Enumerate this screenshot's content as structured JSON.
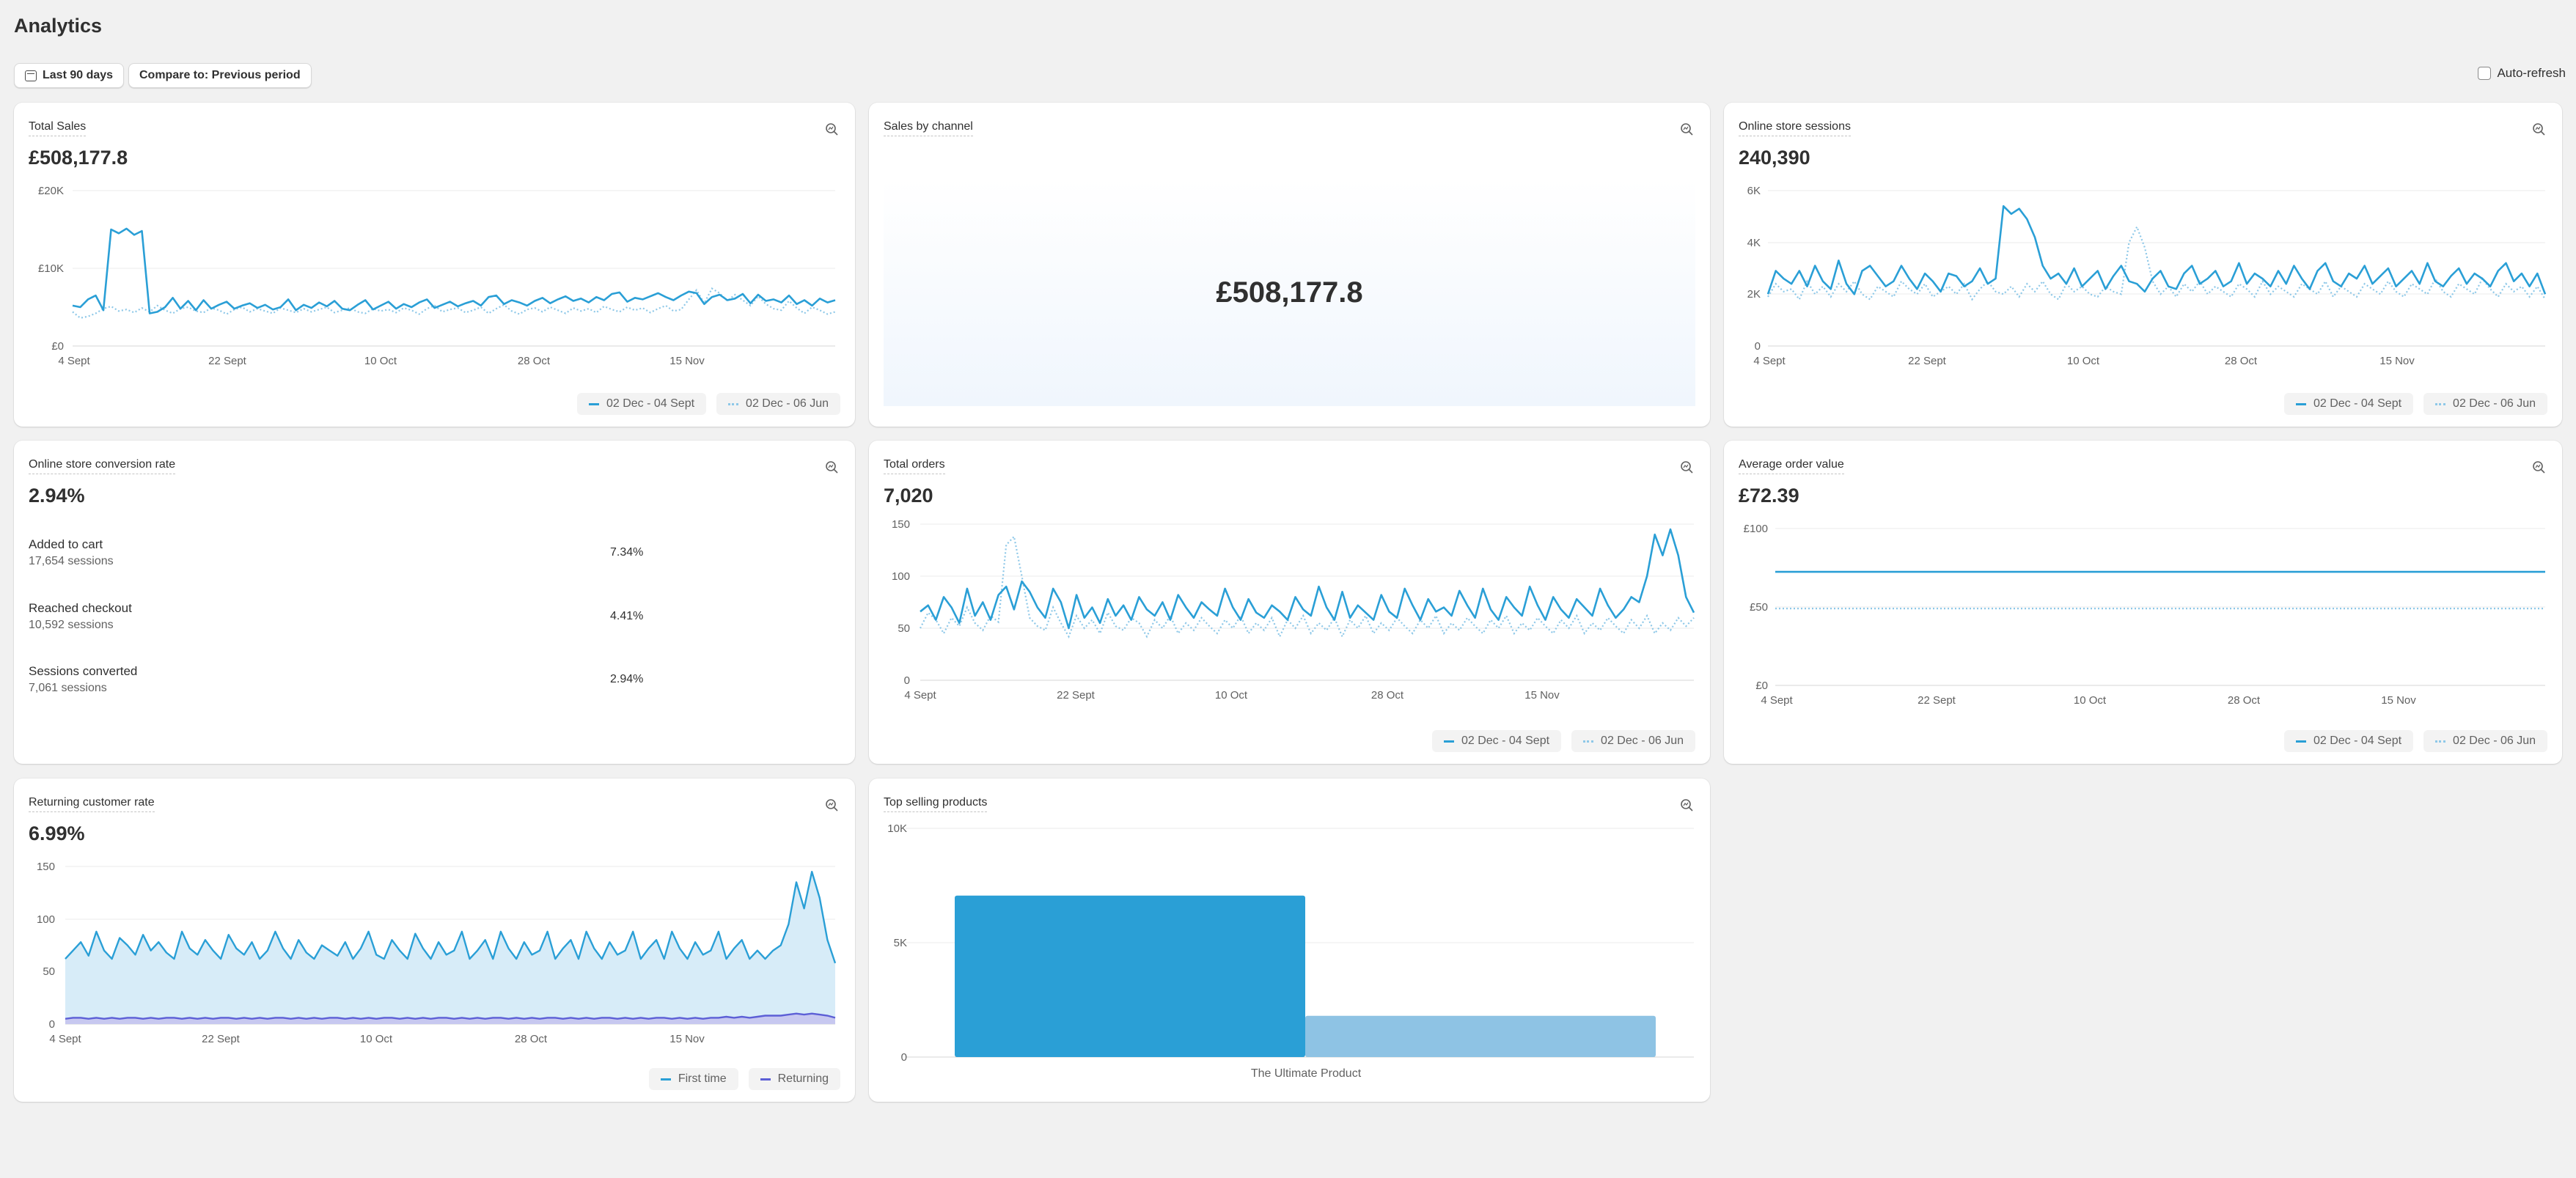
{
  "header": {
    "title": "Analytics",
    "date_range_label": "Last 90 days",
    "compare_label": "Compare to: Previous period",
    "auto_refresh_label": "Auto-refresh"
  },
  "legend": {
    "current": "02 Dec - 04 Sept",
    "previous": "02 Dec - 06 Jun",
    "first_time": "First time",
    "returning": "Returning"
  },
  "colors": {
    "primary": "#2a9fd6",
    "comparison": "#8ec8e8",
    "returning": "#5c5fd6",
    "bar_light": "#8ec3e4"
  },
  "cards": {
    "total_sales": {
      "title": "Total Sales",
      "value": "£508,177.8",
      "y_ticks": [
        "£20K",
        "£10K",
        "£0"
      ],
      "x_ticks": [
        "4 Sept",
        "22 Sept",
        "10 Oct",
        "28 Oct",
        "15 Nov"
      ]
    },
    "sales_by_channel": {
      "title": "Sales by channel",
      "value": "£508,177.8"
    },
    "sessions": {
      "title": "Online store sessions",
      "value": "240,390",
      "y_ticks": [
        "6K",
        "4K",
        "2K",
        "0"
      ],
      "x_ticks": [
        "4 Sept",
        "22 Sept",
        "10 Oct",
        "28 Oct",
        "15 Nov"
      ]
    },
    "conversion": {
      "title": "Online store conversion rate",
      "value": "2.94%",
      "rows": [
        {
          "label": "Added to cart",
          "sub": "17,654 sessions",
          "pct": "7.34%"
        },
        {
          "label": "Reached checkout",
          "sub": "10,592 sessions",
          "pct": "4.41%"
        },
        {
          "label": "Sessions converted",
          "sub": "7,061 sessions",
          "pct": "2.94%"
        }
      ]
    },
    "total_orders": {
      "title": "Total orders",
      "value": "7,020",
      "y_ticks": [
        "150",
        "100",
        "50",
        "0"
      ],
      "x_ticks": [
        "4 Sept",
        "22 Sept",
        "10 Oct",
        "28 Oct",
        "15 Nov"
      ]
    },
    "aov": {
      "title": "Average order value",
      "value": "£72.39",
      "y_ticks": [
        "£100",
        "£50",
        "£0"
      ],
      "x_ticks": [
        "4 Sept",
        "22 Sept",
        "10 Oct",
        "28 Oct",
        "15 Nov"
      ]
    },
    "returning": {
      "title": "Returning customer rate",
      "value": "6.99%",
      "y_ticks": [
        "150",
        "100",
        "50",
        "0"
      ],
      "x_ticks": [
        "4 Sept",
        "22 Sept",
        "10 Oct",
        "28 Oct",
        "15 Nov"
      ]
    },
    "top_products": {
      "title": "Top selling products",
      "y_ticks": [
        "10K",
        "5K",
        "0"
      ],
      "category": "The Ultimate Product"
    }
  },
  "chart_data": [
    {
      "type": "line",
      "id": "total_sales",
      "x_start": "4 Sept",
      "ylim": [
        0,
        20000
      ],
      "series": [
        {
          "name": "02 Dec - 04 Sept",
          "values": [
            5200,
            5000,
            6000,
            6500,
            4600,
            15000,
            14500,
            15100,
            14300,
            14800,
            4200,
            4400,
            5000,
            6200,
            4800,
            5800,
            4600,
            5900,
            4800,
            5300,
            5700,
            4800,
            5200,
            5500,
            4900,
            5300,
            4700,
            5000,
            6000,
            4600,
            5300,
            4900,
            5600,
            5100,
            5800,
            4800,
            4600,
            5300,
            5900,
            4700,
            5200,
            5700,
            4800,
            5400,
            5000,
            5600,
            6000,
            4900,
            5300,
            5700,
            5100,
            5500,
            5800,
            5200,
            6300,
            6500,
            5400,
            5900,
            5600,
            5200,
            5800,
            6200,
            5500,
            6000,
            6400,
            5800,
            6100,
            5600,
            6300,
            5900,
            6700,
            6900,
            5700,
            6200,
            6000,
            6400,
            6800,
            6300,
            5900,
            6500,
            7000,
            6800,
            5400,
            6300,
            6600,
            5900,
            6100,
            6700,
            5500,
            6600,
            5800,
            6000,
            5600,
            6500,
            5400,
            5900,
            5200,
            6100,
            5600,
            5900
          ]
        },
        {
          "name": "02 Dec - 06 Jun",
          "values": [
            4400,
            3600,
            3800,
            4200,
            4800,
            5100,
            4500,
            4700,
            4300,
            4900,
            4400,
            5200,
            4600,
            4200,
            4800,
            5000,
            4500,
            4300,
            4900,
            4600,
            4100,
            4700,
            5000,
            4400,
            4800,
            4500,
            4200,
            4900,
            4600,
            4300,
            4800,
            4400,
            4700,
            5000,
            4300,
            4600,
            4900,
            4400,
            4200,
            4800,
            4500,
            4700,
            4300,
            4900,
            4600,
            4100,
            4800,
            5200,
            4400,
            4700,
            4900,
            4300,
            4600,
            5000,
            4200,
            4800,
            5300,
            4500,
            4100,
            4700,
            4900,
            4400,
            5000,
            4600,
            4200,
            4900,
            4500,
            4800,
            4300,
            5100,
            4700,
            4400,
            5000,
            4600,
            4900,
            4300,
            4800,
            5200,
            4500,
            4700,
            6000,
            7200,
            5500,
            7400,
            6800,
            5800,
            6600,
            5900,
            5200,
            6400,
            5400,
            4800,
            4600,
            5800,
            4900,
            4200,
            5000,
            4600,
            4100,
            4400
          ]
        }
      ]
    },
    {
      "type": "line",
      "id": "sessions",
      "x_start": "4 Sept",
      "ylim": [
        0,
        6000
      ],
      "series": [
        {
          "name": "02 Dec - 04 Sept",
          "values": [
            2000,
            2900,
            2600,
            2400,
            2900,
            2300,
            3100,
            2500,
            2200,
            3300,
            2400,
            2000,
            2900,
            3100,
            2700,
            2300,
            2500,
            3100,
            2600,
            2200,
            2800,
            2500,
            2100,
            2800,
            2700,
            2300,
            2500,
            3000,
            2400,
            2600,
            5400,
            5100,
            5300,
            4900,
            4200,
            3100,
            2600,
            2800,
            2400,
            3000,
            2300,
            2600,
            2900,
            2200,
            2700,
            3100,
            2500,
            2400,
            2100,
            2600,
            2900,
            2300,
            2200,
            2800,
            3100,
            2400,
            2600,
            2900,
            2300,
            2500,
            3200,
            2400,
            2800,
            2600,
            2300,
            2900,
            2400,
            3100,
            2600,
            2200,
            2900,
            3200,
            2500,
            2300,
            2800,
            2600,
            3100,
            2400,
            2700,
            3000,
            2300,
            2600,
            2900,
            2400,
            3200,
            2500,
            2300,
            2700,
            3000,
            2400,
            2800,
            2600,
            2300,
            2900,
            3200,
            2500,
            2800,
            2300,
            2800,
            2000
          ]
        },
        {
          "name": "02 Dec - 06 Jun",
          "values": [
            1900,
            2400,
            2100,
            2200,
            1800,
            2500,
            2000,
            2300,
            1900,
            2400,
            2100,
            2500,
            2000,
            1800,
            2300,
            2100,
            1900,
            2500,
            2200,
            2000,
            2400,
            1900,
            2100,
            2300,
            2000,
            2400,
            1800,
            2200,
            2500,
            2100,
            2000,
            2300,
            1900,
            2400,
            2100,
            2500,
            2000,
            1800,
            2400,
            2100,
            2300,
            2000,
            1900,
            2300,
            2100,
            2000,
            4000,
            4600,
            3800,
            2500,
            2000,
            2300,
            1900,
            2400,
            2100,
            2500,
            2000,
            2300,
            2100,
            1900,
            2400,
            2200,
            1900,
            2500,
            2000,
            2300,
            2100,
            1900,
            2400,
            2200,
            2000,
            2500,
            1900,
            2300,
            2100,
            1900,
            2400,
            2200,
            2000,
            2500,
            2100,
            1900,
            2400,
            2200,
            2000,
            2600,
            2100,
            1900,
            2400,
            2200,
            2000,
            2600,
            2200,
            1900,
            2400,
            2100,
            2300,
            1900,
            2300,
            1800
          ]
        }
      ]
    },
    {
      "type": "line",
      "id": "total_orders",
      "x_start": "4 Sept",
      "ylim": [
        0,
        150
      ],
      "series": [
        {
          "name": "02 Dec - 04 Sept",
          "values": [
            66,
            72,
            58,
            80,
            70,
            55,
            88,
            62,
            75,
            58,
            82,
            90,
            68,
            95,
            85,
            70,
            60,
            88,
            75,
            50,
            82,
            60,
            70,
            55,
            78,
            62,
            72,
            58,
            80,
            68,
            62,
            75,
            58,
            82,
            70,
            60,
            75,
            68,
            62,
            88,
            70,
            58,
            78,
            65,
            60,
            72,
            66,
            58,
            80,
            68,
            62,
            90,
            70,
            58,
            85,
            60,
            72,
            65,
            58,
            82,
            66,
            60,
            88,
            72,
            58,
            78,
            66,
            70,
            62,
            86,
            72,
            60,
            88,
            68,
            58,
            80,
            70,
            62,
            90,
            72,
            58,
            80,
            68,
            60,
            78,
            70,
            62,
            88,
            72,
            60,
            68,
            80,
            75,
            100,
            140,
            120,
            145,
            120,
            80,
            65
          ]
        },
        {
          "name": "02 Dec - 06 Jun",
          "values": [
            50,
            65,
            58,
            45,
            60,
            52,
            70,
            55,
            48,
            62,
            56,
            130,
            138,
            100,
            60,
            52,
            48,
            70,
            55,
            42,
            62,
            50,
            58,
            45,
            65,
            52,
            48,
            60,
            55,
            42,
            58,
            50,
            62,
            45,
            55,
            48,
            60,
            52,
            45,
            58,
            50,
            62,
            45,
            55,
            48,
            60,
            42,
            58,
            50,
            62,
            45,
            55,
            48,
            60,
            42,
            58,
            50,
            62,
            45,
            55,
            48,
            60,
            52,
            45,
            58,
            50,
            62,
            45,
            55,
            48,
            60,
            52,
            45,
            58,
            50,
            62,
            45,
            55,
            48,
            60,
            52,
            45,
            58,
            50,
            62,
            45,
            55,
            48,
            60,
            52,
            45,
            58,
            50,
            62,
            45,
            55,
            48,
            60,
            52,
            60
          ]
        }
      ]
    },
    {
      "type": "line",
      "id": "aov",
      "x_start": "4 Sept",
      "ylim": [
        0,
        100
      ],
      "series": [
        {
          "name": "02 Dec - 04 Sept",
          "values": [
            72.39,
            72.39
          ]
        },
        {
          "name": "02 Dec - 06 Jun",
          "values": [
            49,
            49
          ]
        }
      ]
    },
    {
      "type": "area",
      "id": "returning",
      "x_start": "4 Sept",
      "ylim": [
        0,
        150
      ],
      "series": [
        {
          "name": "First time",
          "values": [
            62,
            70,
            78,
            65,
            88,
            70,
            62,
            82,
            75,
            66,
            85,
            70,
            78,
            68,
            62,
            88,
            72,
            66,
            80,
            70,
            62,
            85,
            72,
            66,
            78,
            62,
            70,
            88,
            72,
            62,
            80,
            68,
            62,
            75,
            70,
            65,
            78,
            62,
            72,
            88,
            66,
            62,
            80,
            70,
            62,
            86,
            72,
            62,
            78,
            66,
            70,
            88,
            62,
            70,
            80,
            62,
            88,
            72,
            62,
            78,
            66,
            70,
            88,
            62,
            72,
            80,
            62,
            88,
            72,
            62,
            78,
            66,
            70,
            88,
            62,
            72,
            80,
            62,
            88,
            72,
            62,
            78,
            66,
            70,
            88,
            62,
            72,
            80,
            62,
            70,
            62,
            70,
            75,
            95,
            135,
            110,
            145,
            120,
            80,
            58
          ]
        },
        {
          "name": "Returning",
          "values": [
            5,
            6,
            6,
            5,
            6,
            5,
            6,
            5,
            6,
            6,
            5,
            6,
            5,
            6,
            6,
            5,
            6,
            5,
            6,
            5,
            6,
            6,
            5,
            6,
            5,
            6,
            5,
            6,
            6,
            5,
            6,
            5,
            6,
            5,
            6,
            6,
            5,
            6,
            5,
            6,
            5,
            6,
            6,
            5,
            6,
            5,
            6,
            5,
            6,
            6,
            5,
            6,
            5,
            6,
            5,
            6,
            6,
            5,
            6,
            5,
            6,
            5,
            6,
            6,
            5,
            6,
            5,
            6,
            5,
            6,
            6,
            5,
            6,
            5,
            6,
            5,
            6,
            6,
            5,
            6,
            5,
            6,
            5,
            6,
            6,
            7,
            6,
            7,
            6,
            7,
            8,
            8,
            8,
            9,
            10,
            9,
            10,
            9,
            8,
            6
          ]
        }
      ]
    },
    {
      "type": "bar",
      "id": "top_products",
      "categories": [
        "The Ultimate Product"
      ],
      "ylim": [
        0,
        10000
      ],
      "series": [
        {
          "name": "02 Dec - 04 Sept",
          "values": [
            7061
          ]
        },
        {
          "name": "02 Dec - 06 Jun",
          "values": [
            1800
          ]
        }
      ]
    }
  ]
}
